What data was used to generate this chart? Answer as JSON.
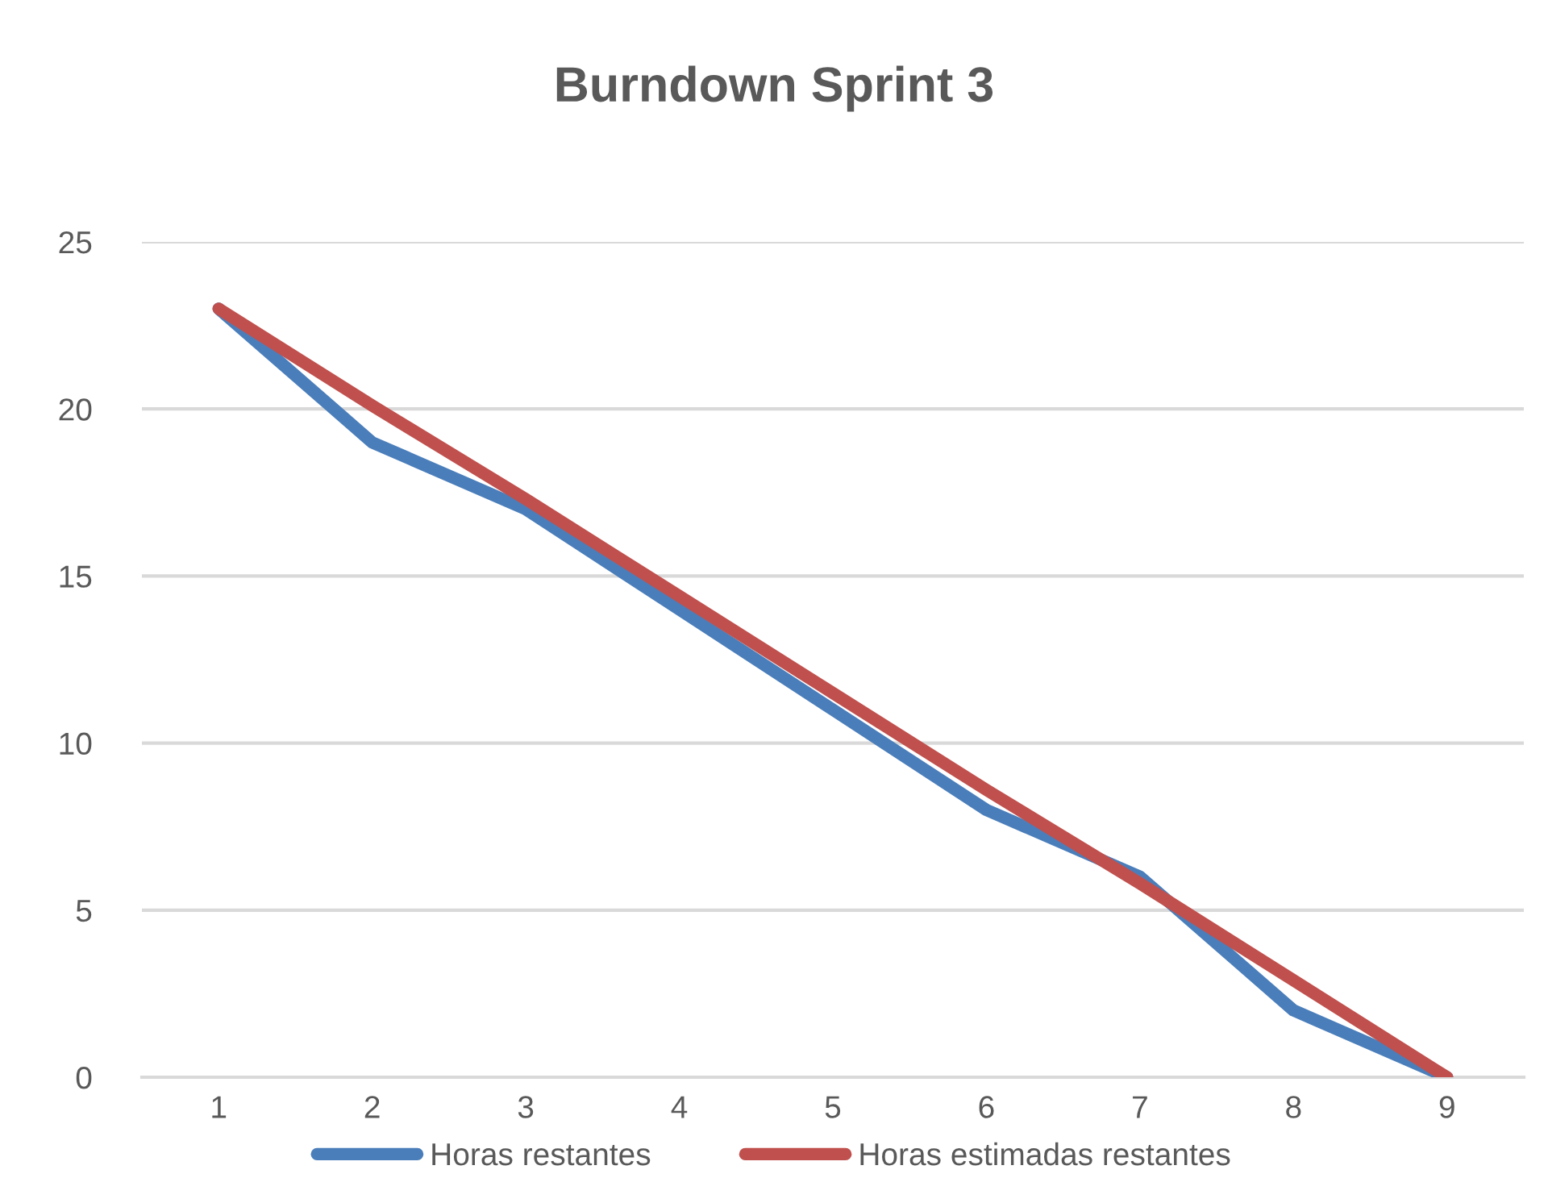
{
  "chart_data": {
    "type": "line",
    "title": "Burndown Sprint 3",
    "categories": [
      "1",
      "2",
      "3",
      "4",
      "5",
      "6",
      "7",
      "8",
      "9"
    ],
    "series": [
      {
        "name": "Horas restantes",
        "color": "#4a7ebb",
        "values": [
          23,
          19,
          17,
          14,
          11,
          8,
          6,
          2,
          0
        ]
      },
      {
        "name": "Horas estimadas restantes",
        "color": "#c0504d",
        "values": [
          23,
          20.1,
          17.3,
          14.4,
          11.5,
          8.6,
          5.8,
          2.9,
          0
        ]
      }
    ],
    "ylim": [
      0,
      25
    ],
    "yticks": [
      0,
      5,
      10,
      15,
      20,
      25
    ],
    "grid": "y",
    "legend": "bottom",
    "line_style": "solid"
  }
}
